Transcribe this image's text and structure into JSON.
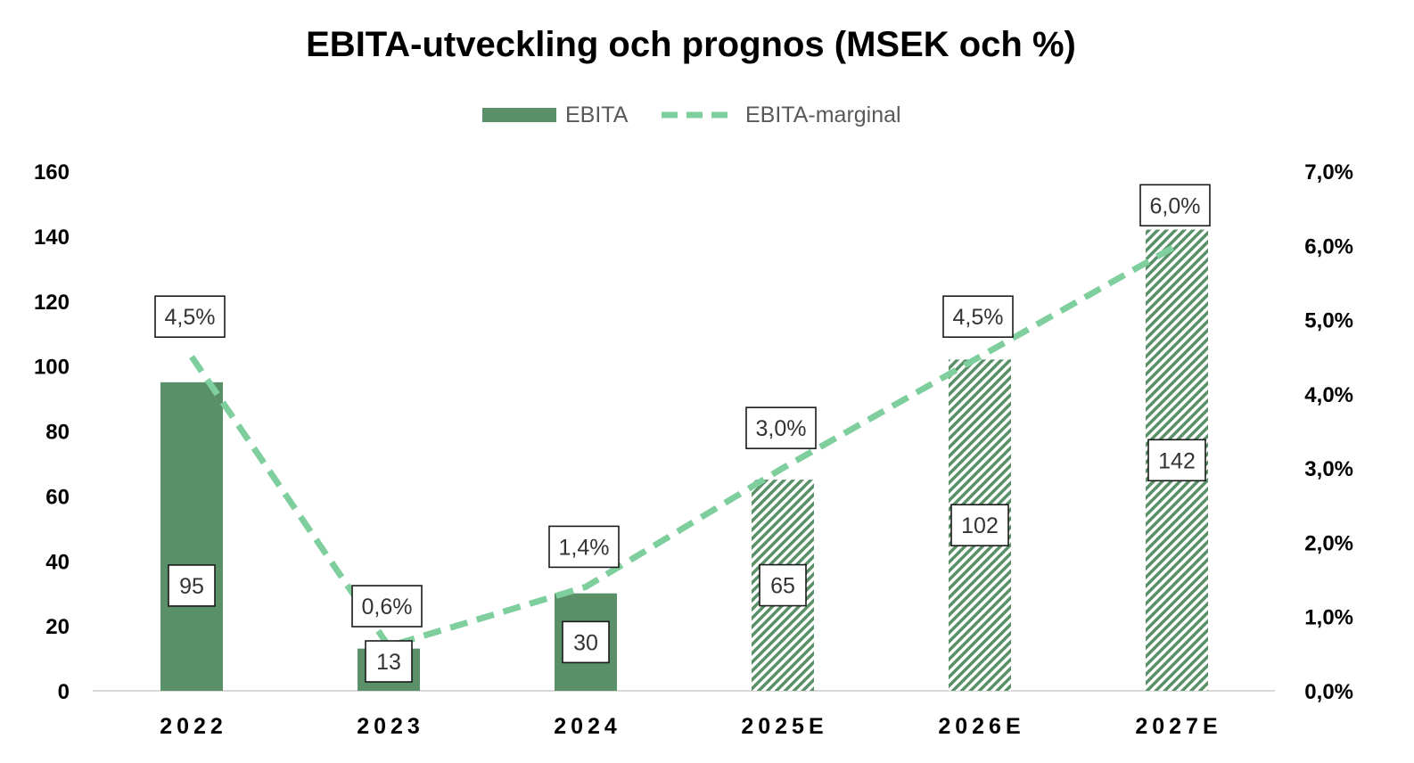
{
  "chart_data": {
    "type": "bar",
    "title": "EBITA-utveckling och prognos (MSEK och %)",
    "categories": [
      "2022",
      "2023",
      "2024",
      "2025E",
      "2026E",
      "2027E"
    ],
    "forecast": [
      false,
      false,
      false,
      true,
      true,
      true
    ],
    "series": [
      {
        "name": "EBITA",
        "type": "bar",
        "axis": "left",
        "values": [
          95,
          13,
          30,
          65,
          102,
          142
        ],
        "labels": [
          "95",
          "13",
          "30",
          "65",
          "102",
          "142"
        ],
        "color": "#5a9068"
      },
      {
        "name": "EBITA-marginal",
        "type": "line",
        "axis": "right",
        "style": "dashed",
        "values": [
          4.5,
          0.6,
          1.4,
          3.0,
          4.5,
          6.0
        ],
        "labels": [
          "4,5%",
          "0,6%",
          "1,4%",
          "3,0%",
          "4,5%",
          "6,0%"
        ],
        "color": "#7ecf9d"
      }
    ],
    "ylim": [
      0,
      160
    ],
    "yticks": [
      0,
      20,
      40,
      60,
      80,
      100,
      120,
      140,
      160
    ],
    "y2lim": [
      0,
      7
    ],
    "y2ticks": [
      0,
      1,
      2,
      3,
      4,
      5,
      6,
      7
    ],
    "y2tick_labels": [
      "0,0%",
      "1,0%",
      "2,0%",
      "3,0%",
      "4,0%",
      "5,0%",
      "6,0%",
      "7,0%"
    ],
    "legend_position": "top-center",
    "grid": false
  }
}
